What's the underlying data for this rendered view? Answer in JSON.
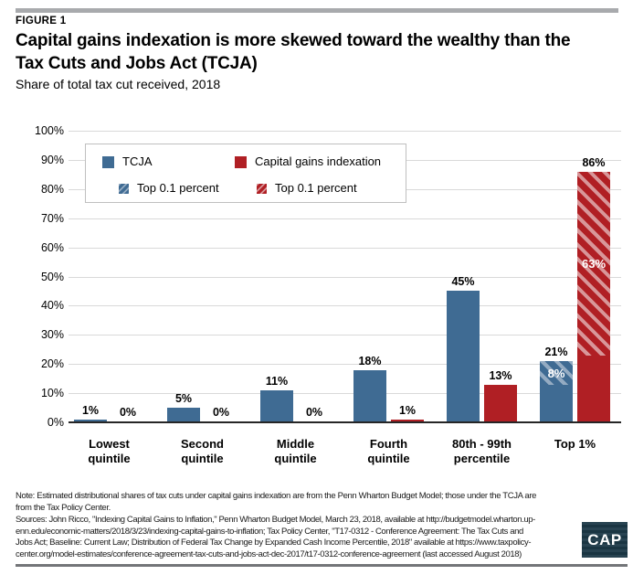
{
  "page": {
    "figure_label": "FIGURE 1",
    "title": "Capital gains indexation is more skewed toward the wealthy than the\nTax Cuts and Jobs Act (TCJA)",
    "subtitle": "Share of total tax cut received, 2018",
    "note": "Note: Estimated distributional shares of tax cuts under capital gains indexation are from the Penn Wharton Budget Model; those under the TCJA are\nfrom the Tax Policy Center.",
    "sources": "Sources: John Ricco, \"Indexing Capital Gains to Inflation,\" Penn Wharton Budget Model, March 23, 2018, available at http://budgetmodel.wharton.up-\nenn.edu/economic-matters/2018/3/23/indexing-capital-gains-to-inflation; Tax Policy Center, \"T17-0312 - Conference Agreement: The Tax Cuts and\nJobs Act; Baseline: Current Law; Distribution of Federal Tax Change by Expanded Cash Income Percentile, 2018\" available at https://www.taxpolicy-\ncenter.org/model-estimates/conference-agreement-tax-cuts-and-jobs-act-dec-2017/t17-0312-conference-agreement (last accessed August 2018)",
    "logo_text": "CAP"
  },
  "legend": {
    "items": [
      {
        "label": "TCJA",
        "swatch": "solid-blue"
      },
      {
        "label": "Capital gains indexation",
        "swatch": "solid-red"
      },
      {
        "label": "Top 0.1 percent",
        "swatch": "hatch-blue"
      },
      {
        "label": "Top 0.1 percent",
        "swatch": "hatch-red"
      }
    ]
  },
  "colors": {
    "tcja_blue": "#3f6b93",
    "tcja_blue_hatch_light": "#94abc2",
    "indexation_red": "#b01f24",
    "indexation_red_hatch_light": "#d89699",
    "gridline": "#d9d9d9",
    "axis": "#262626",
    "top_rule": "#a8aaad",
    "bottom_rule": "#737578",
    "logo_bg": "#1c3948"
  },
  "chart_data": {
    "type": "bar",
    "title": "Capital gains indexation is more skewed toward the wealthy than the Tax Cuts and Jobs Act (TCJA)",
    "subtitle": "Share of total tax cut received, 2018",
    "categories": [
      "Lowest quintile",
      "Second quintile",
      "Middle quintile",
      "Fourth quintile",
      "80th - 99th percentile",
      "Top 1%"
    ],
    "category_labels": [
      "Lowest\nquintile",
      "Second\nquintile",
      "Middle\nquintile",
      "Fourth\nquintile",
      "80th - 99th\npercentile",
      "Top 1%"
    ],
    "ylim": [
      0,
      100
    ],
    "ytick_labels": [
      "100%",
      "90%",
      "80%",
      "70%",
      "60%",
      "50%",
      "40%",
      "30%",
      "20%",
      "10%",
      "0%"
    ],
    "grid": true,
    "legend_position": "top-left inside plot",
    "series": [
      {
        "name": "TCJA",
        "values": [
          1,
          5,
          11,
          18,
          45,
          21
        ],
        "top01_overlay": [
          null,
          null,
          null,
          null,
          null,
          8
        ]
      },
      {
        "name": "Capital gains indexation",
        "values": [
          0,
          0,
          0,
          1,
          13,
          86
        ],
        "top01_overlay": [
          null,
          null,
          null,
          null,
          null,
          63
        ]
      }
    ]
  }
}
